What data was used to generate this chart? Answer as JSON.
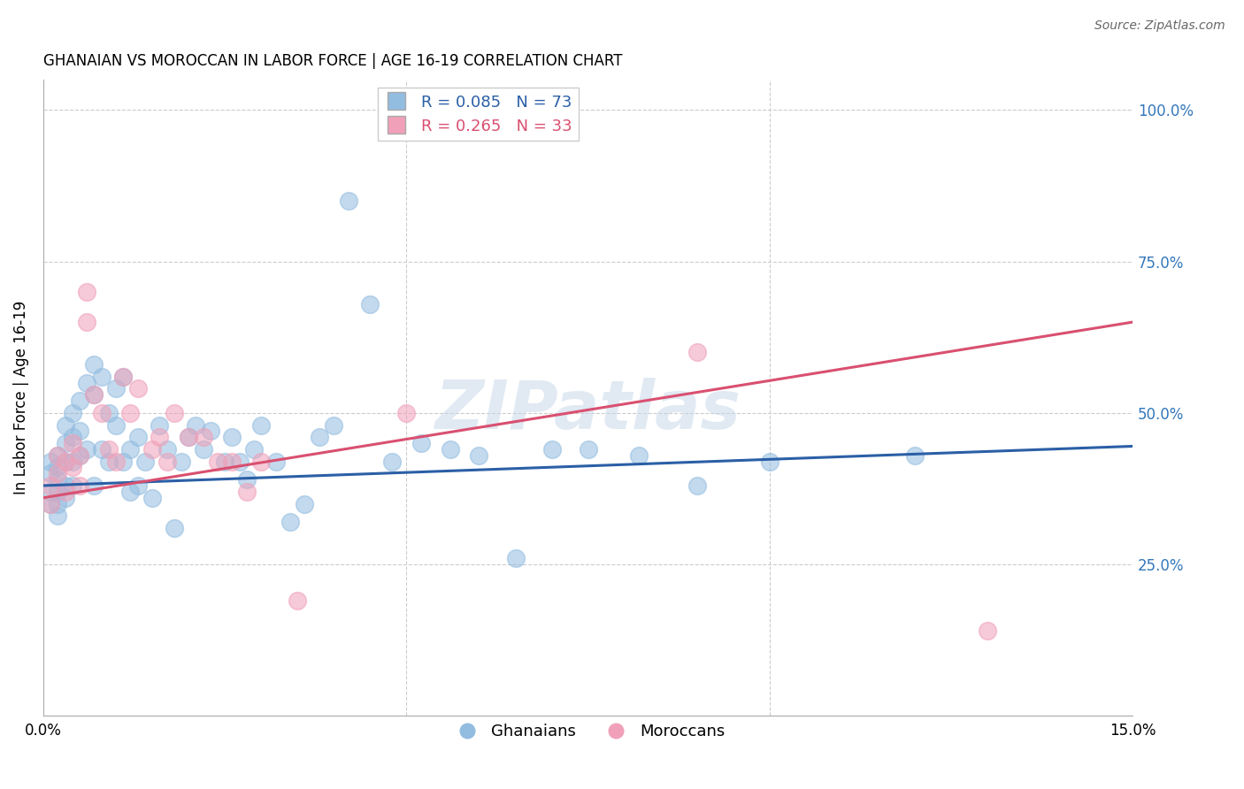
{
  "title": "GHANAIAN VS MOROCCAN IN LABOR FORCE | AGE 16-19 CORRELATION CHART",
  "source": "Source: ZipAtlas.com",
  "ylabel": "In Labor Force | Age 16-19",
  "watermark": "ZIPatlas",
  "legend_blue_R": "R = 0.085",
  "legend_blue_N": "N = 73",
  "legend_pink_R": "R = 0.265",
  "legend_pink_N": "N = 33",
  "blue_scatter_color": "#92bce0",
  "pink_scatter_color": "#f0a0b8",
  "blue_line_color": "#2B5FA6",
  "pink_line_color": "#D95070",
  "xlim": [
    0.0,
    0.15
  ],
  "ylim": [
    0.0,
    1.05
  ],
  "blue_line_x0": 0.0,
  "blue_line_y0": 0.38,
  "blue_line_x1": 0.15,
  "blue_line_y1": 0.445,
  "pink_line_x0": 0.0,
  "pink_line_y0": 0.36,
  "pink_line_x1": 0.15,
  "pink_line_y1": 0.65,
  "ghanaians_x": [
    0.001,
    0.001,
    0.001,
    0.001,
    0.002,
    0.002,
    0.002,
    0.002,
    0.002,
    0.002,
    0.003,
    0.003,
    0.003,
    0.003,
    0.003,
    0.004,
    0.004,
    0.004,
    0.004,
    0.005,
    0.005,
    0.005,
    0.006,
    0.006,
    0.007,
    0.007,
    0.007,
    0.008,
    0.008,
    0.009,
    0.009,
    0.01,
    0.01,
    0.011,
    0.011,
    0.012,
    0.012,
    0.013,
    0.013,
    0.014,
    0.015,
    0.016,
    0.017,
    0.018,
    0.019,
    0.02,
    0.021,
    0.022,
    0.023,
    0.025,
    0.026,
    0.027,
    0.028,
    0.029,
    0.03,
    0.032,
    0.034,
    0.036,
    0.038,
    0.04,
    0.042,
    0.045,
    0.048,
    0.052,
    0.056,
    0.06,
    0.065,
    0.07,
    0.075,
    0.082,
    0.09,
    0.1,
    0.12
  ],
  "ghanaians_y": [
    0.42,
    0.4,
    0.37,
    0.35,
    0.43,
    0.41,
    0.39,
    0.37,
    0.35,
    0.33,
    0.48,
    0.45,
    0.42,
    0.38,
    0.36,
    0.5,
    0.46,
    0.42,
    0.38,
    0.52,
    0.47,
    0.43,
    0.55,
    0.44,
    0.58,
    0.53,
    0.38,
    0.56,
    0.44,
    0.5,
    0.42,
    0.54,
    0.48,
    0.56,
    0.42,
    0.37,
    0.44,
    0.46,
    0.38,
    0.42,
    0.36,
    0.48,
    0.44,
    0.31,
    0.42,
    0.46,
    0.48,
    0.44,
    0.47,
    0.42,
    0.46,
    0.42,
    0.39,
    0.44,
    0.48,
    0.42,
    0.32,
    0.35,
    0.46,
    0.48,
    0.85,
    0.68,
    0.42,
    0.45,
    0.44,
    0.43,
    0.26,
    0.44,
    0.44,
    0.43,
    0.38,
    0.42,
    0.43
  ],
  "moroccans_x": [
    0.001,
    0.001,
    0.002,
    0.002,
    0.003,
    0.003,
    0.004,
    0.004,
    0.005,
    0.005,
    0.006,
    0.006,
    0.007,
    0.008,
    0.009,
    0.01,
    0.011,
    0.012,
    0.013,
    0.015,
    0.016,
    0.017,
    0.018,
    0.02,
    0.022,
    0.024,
    0.026,
    0.028,
    0.03,
    0.035,
    0.05,
    0.09,
    0.13
  ],
  "moroccans_y": [
    0.38,
    0.35,
    0.43,
    0.4,
    0.42,
    0.37,
    0.45,
    0.41,
    0.43,
    0.38,
    0.7,
    0.65,
    0.53,
    0.5,
    0.44,
    0.42,
    0.56,
    0.5,
    0.54,
    0.44,
    0.46,
    0.42,
    0.5,
    0.46,
    0.46,
    0.42,
    0.42,
    0.37,
    0.42,
    0.19,
    0.5,
    0.6,
    0.14
  ]
}
